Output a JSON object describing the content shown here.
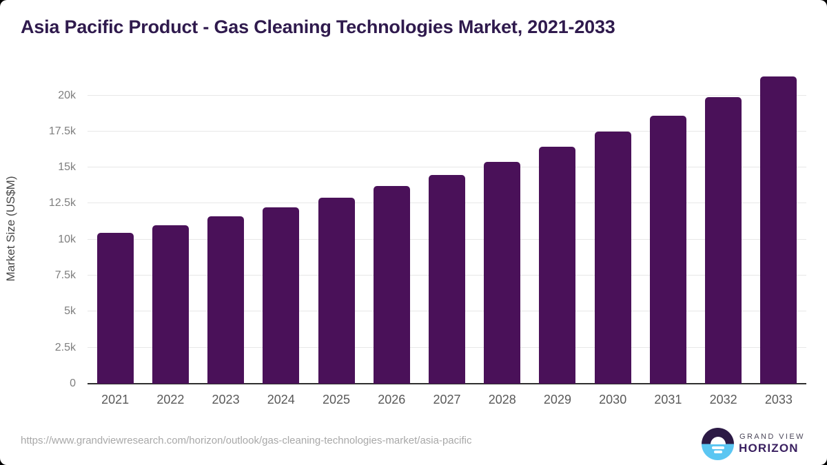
{
  "title": "Asia Pacific Product - Gas Cleaning Technologies Market, 2021-2033",
  "chart_data": {
    "type": "bar",
    "categories": [
      "2021",
      "2022",
      "2023",
      "2024",
      "2025",
      "2026",
      "2027",
      "2028",
      "2029",
      "2030",
      "2031",
      "2032",
      "2033"
    ],
    "values": [
      10450,
      11000,
      11600,
      12250,
      12900,
      13700,
      14500,
      15400,
      16450,
      17500,
      18600,
      19900,
      21300
    ],
    "title": "Asia Pacific Product - Gas Cleaning Technologies Market, 2021-2033",
    "xlabel": "",
    "ylabel": "Market Size (US$M)",
    "ylim": [
      0,
      20000
    ],
    "ytick_step": 2500,
    "ytick_labels": [
      "0",
      "2.5k",
      "5k",
      "7.5k",
      "10k",
      "12.5k",
      "15k",
      "17.5k",
      "20k"
    ],
    "grid": true,
    "legend": false,
    "bar_color": "#4a1159"
  },
  "footer": {
    "source_url": "https://www.grandviewresearch.com/horizon/outlook/gas-cleaning-technologies-market/asia-pacific",
    "logo": {
      "line1": "GRAND VIEW",
      "line2": "HORIZON"
    }
  },
  "colors": {
    "bar": "#4a1159",
    "title_text": "#2f1a4d",
    "gridline": "#e7e7e7",
    "axis_line": "#2e2e2e",
    "tick_text": "#7e7e7e",
    "category_text": "#595959",
    "logo_top": "#2c1a45",
    "logo_bottom": "#5bc6f2"
  }
}
